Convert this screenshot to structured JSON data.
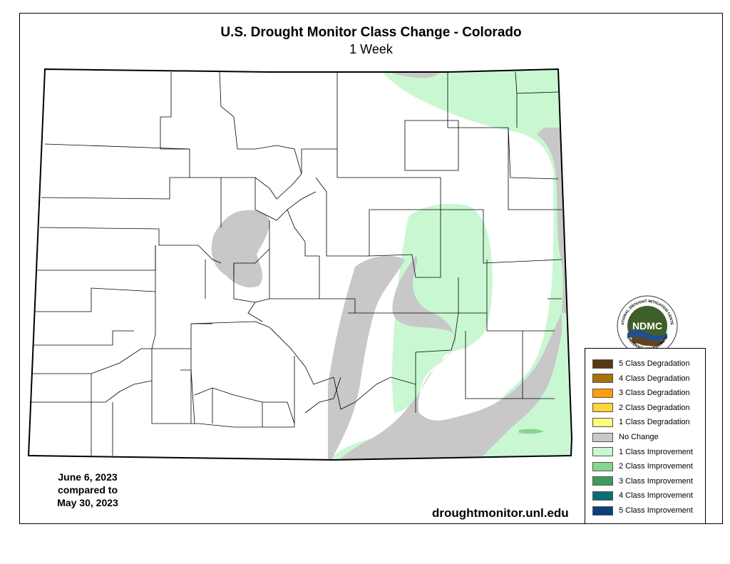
{
  "map": {
    "title": "U.S. Drought Monitor Class Change - Colorado",
    "subtitle": "1 Week",
    "date_line1": "June 6, 2023",
    "date_line2": "compared to",
    "date_line3": "May 30, 2023",
    "url": "droughtmonitor.unl.edu",
    "colors": {
      "no_change": "#c8c8c8",
      "one_class_improvement": "#c9f7d2",
      "two_class_improvement": "#86d68f",
      "background": "#ffffff"
    }
  },
  "legend": {
    "items": [
      {
        "label": "5 Class Degradation",
        "color": "#5a3812"
      },
      {
        "label": "4 Class Degradation",
        "color": "#a6730a"
      },
      {
        "label": "3 Class Degradation",
        "color": "#ff9e0a"
      },
      {
        "label": "2 Class Degradation",
        "color": "#ffd43a"
      },
      {
        "label": "1 Class Degradation",
        "color": "#fffb7c"
      },
      {
        "label": "No Change",
        "color": "#c8c8c8"
      },
      {
        "label": "1 Class Improvement",
        "color": "#c9f7d2"
      },
      {
        "label": "2 Class Improvement",
        "color": "#86d68f"
      },
      {
        "label": "3 Class Improvement",
        "color": "#3e9b5e"
      },
      {
        "label": "4 Class Improvement",
        "color": "#0a6d75"
      },
      {
        "label": "5 Class Improvement",
        "color": "#0a3f7c"
      }
    ]
  },
  "logo": {
    "name": "NDMC",
    "text_top": "NATIONAL DROUGHT MITIGATION CENTER",
    "text_bottom": "UNIVERSITY OF NEBRASKA",
    "icon": "ndmc-seal-icon"
  }
}
